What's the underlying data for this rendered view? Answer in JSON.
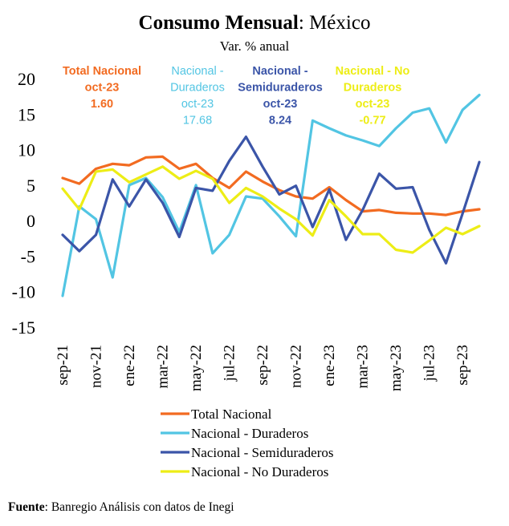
{
  "title_bold": "Consumo Mensual",
  "title_rest": ": México",
  "subtitle": "Var. % anual",
  "source_label": "Fuente",
  "source_text": ": Banregio Análisis con datos de Inegi",
  "annotations": [
    {
      "lines": [
        "Total Nacional",
        "oct-23",
        "1.60"
      ],
      "color": "#F26B21",
      "weight": "bold"
    },
    {
      "lines": [
        "Nacional -",
        "Duraderos",
        "oct-23",
        "17.68"
      ],
      "color": "#52C5E3",
      "weight": "normal"
    },
    {
      "lines": [
        "Nacional -",
        "Semiduraderos",
        "oct-23",
        "8.24"
      ],
      "color": "#3B55A8",
      "weight": "bold"
    },
    {
      "lines": [
        "Nacional - No",
        "Duraderos",
        "oct-23",
        "-0.77"
      ],
      "color": "#EDED16",
      "weight": "bold"
    }
  ],
  "chart_data": {
    "type": "line",
    "title": "Consumo Mensual: México",
    "subtitle": "Var. % anual",
    "ylim": [
      -15,
      20
    ],
    "yticks": [
      20,
      15,
      10,
      5,
      0,
      -5,
      -10,
      -15
    ],
    "x": [
      "sep-21",
      "oct-21",
      "nov-21",
      "dic-21",
      "ene-22",
      "feb-22",
      "mar-22",
      "abr-22",
      "may-22",
      "jun-22",
      "jul-22",
      "ago-22",
      "sep-22",
      "oct-22",
      "nov-22",
      "dic-22",
      "ene-23",
      "feb-23",
      "mar-23",
      "abr-23",
      "may-23",
      "jun-23",
      "jul-23",
      "ago-23",
      "sep-23",
      "oct-23"
    ],
    "xtick_labels": [
      "sep-21",
      "nov-21",
      "ene-22",
      "mar-22",
      "may-22",
      "jul-22",
      "sep-22",
      "nov-22",
      "ene-23",
      "mar-23",
      "may-23",
      "jul-23",
      "sep-23"
    ],
    "legend_position": "bottom",
    "grid": false,
    "series": [
      {
        "name": "Total Nacional",
        "color": "#F26B21",
        "values": [
          6.0,
          5.2,
          7.3,
          8.0,
          7.8,
          8.9,
          9.0,
          7.3,
          8.0,
          6.0,
          4.6,
          6.9,
          5.5,
          4.3,
          3.4,
          3.1,
          4.7,
          2.9,
          1.3,
          1.5,
          1.1,
          1.0,
          1.0,
          0.8,
          1.3,
          1.6
        ]
      },
      {
        "name": "Nacional - Duraderos",
        "color": "#52C5E3",
        "values": [
          -10.6,
          2.0,
          0.2,
          -8.0,
          5.0,
          6.0,
          3.3,
          -1.6,
          5.0,
          -4.6,
          -2.0,
          3.4,
          3.1,
          0.6,
          -2.2,
          14.1,
          13.0,
          12.0,
          11.3,
          10.5,
          13.0,
          15.2,
          15.8,
          11.0,
          15.6,
          17.68
        ]
      },
      {
        "name": "Nacional - Semiduraderos",
        "color": "#3B55A8",
        "values": [
          -2.0,
          -4.3,
          -2.0,
          5.8,
          2.0,
          5.8,
          2.5,
          -2.3,
          4.6,
          4.2,
          8.4,
          11.8,
          7.6,
          3.7,
          4.9,
          -0.9,
          4.4,
          -2.7,
          1.5,
          6.6,
          4.5,
          4.7,
          -1.3,
          -6.0,
          1.0,
          8.24
        ]
      },
      {
        "name": "Nacional - No Duraderos",
        "color": "#EDED16",
        "values": [
          4.5,
          1.6,
          6.9,
          7.2,
          5.4,
          6.5,
          7.6,
          5.9,
          7.0,
          5.9,
          2.5,
          4.6,
          3.4,
          1.7,
          0.2,
          -2.1,
          2.9,
          0.6,
          -1.9,
          -1.9,
          -4.1,
          -4.5,
          -2.8,
          -1.0,
          -1.9,
          -0.77
        ]
      }
    ]
  }
}
